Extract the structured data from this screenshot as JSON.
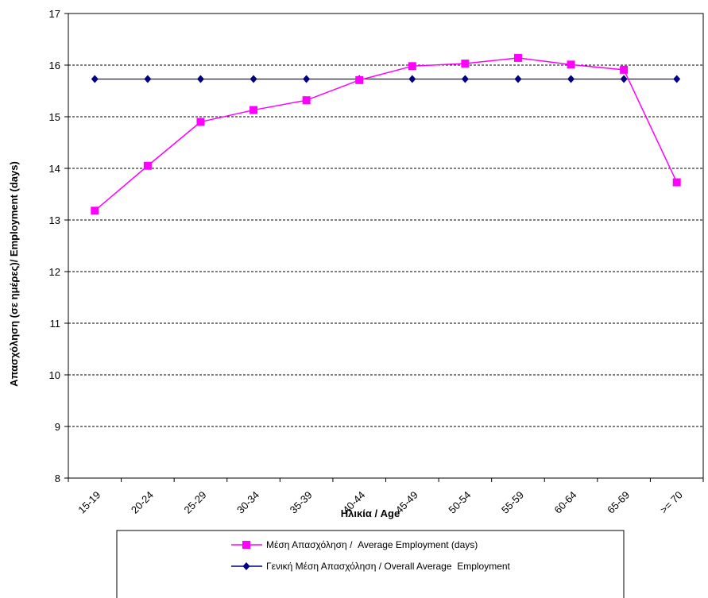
{
  "chart_data": {
    "type": "line",
    "categories": [
      "15-19",
      "20-24",
      "25-29",
      "30-34",
      "35-39",
      "40-44",
      "45-49",
      "50-54",
      "55-59",
      "60-64",
      "65-69",
      ">= 70"
    ],
    "series": [
      {
        "name": "Μέση Απασχόληση /  Average Employment (days)",
        "color": "#ff00ff",
        "marker": "square",
        "values": [
          13.18,
          14.05,
          14.9,
          15.13,
          15.32,
          15.71,
          15.98,
          16.03,
          16.14,
          16.01,
          15.91,
          13.73
        ]
      },
      {
        "name": "Γενική Μέση Απασχόληση / Overall Average  Employment",
        "color": "#000080",
        "marker": "diamond",
        "values": [
          15.73,
          15.73,
          15.73,
          15.73,
          15.73,
          15.73,
          15.73,
          15.73,
          15.73,
          15.73,
          15.73,
          15.73
        ]
      }
    ],
    "xlabel": "Ηλικία / Age",
    "ylabel": "Απασχόληση (σε ημέρες)/ Employment (days)",
    "ylim": [
      8,
      17
    ],
    "yticks": [
      8,
      9,
      10,
      11,
      12,
      13,
      14,
      15,
      16,
      17
    ],
    "grid": "horizontal-dashed",
    "legend_position": "bottom"
  }
}
